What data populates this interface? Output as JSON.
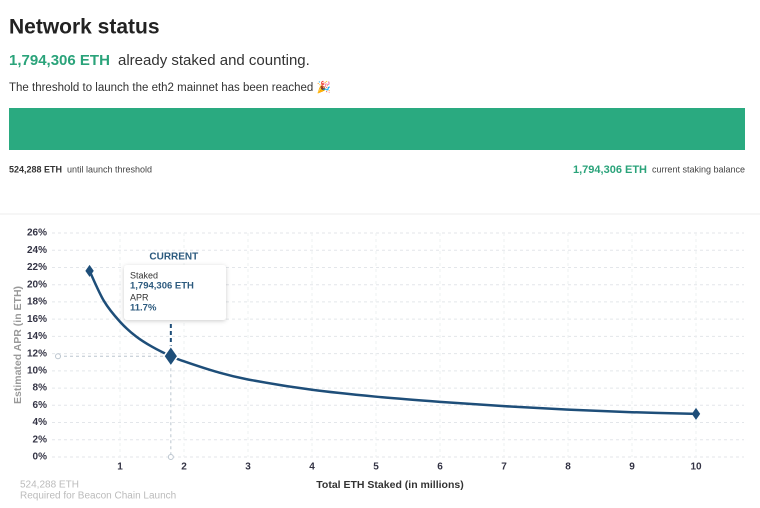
{
  "header": {
    "title": "Network status",
    "staked_amount": "1,794,306 ETH",
    "staked_text": "already staked and counting.",
    "threshold_text": "The threshold to launch the eth2 mainnet has been reached 🎉",
    "threshold_amount": "524,288 ETH",
    "threshold_caption": "until launch threshold",
    "balance_amount": "1,794,306 ETH",
    "balance_caption": "current staking balance"
  },
  "chart_data": {
    "type": "line",
    "y_label": "Estimated APR (in ETH)",
    "x_label": "Total ETH Staked  (in millions)",
    "color": "#1e4e79",
    "grid": true,
    "xlim": [
      0,
      10.75
    ],
    "xticks": [
      1,
      2,
      3,
      4,
      5,
      6,
      7,
      8,
      9,
      10
    ],
    "ylim": [
      0,
      26
    ],
    "yticks": [
      {
        "value": 0,
        "label": "0%"
      },
      {
        "value": 2,
        "label": "2%"
      },
      {
        "value": 4,
        "label": "4%"
      },
      {
        "value": 6,
        "label": "6%"
      },
      {
        "value": 8,
        "label": "8%"
      },
      {
        "value": 10,
        "label": "10%"
      },
      {
        "value": 12,
        "label": "12%"
      },
      {
        "value": 14,
        "label": "14%"
      },
      {
        "value": 16,
        "label": "16%"
      },
      {
        "value": 18,
        "label": "18%"
      },
      {
        "value": 20,
        "label": "20%"
      },
      {
        "value": 22,
        "label": "22%"
      },
      {
        "value": 24,
        "label": "24%"
      },
      {
        "value": 26,
        "label": "26%"
      }
    ],
    "x": [
      0.524288,
      0.75,
      1,
      1.25,
      1.5,
      1.794306,
      2,
      2.5,
      3,
      4,
      5,
      6,
      7,
      8,
      9,
      10
    ],
    "values": [
      21.6,
      18.1,
      15.7,
      14.0,
      12.8,
      11.7,
      11.1,
      9.9,
      9.0,
      7.8,
      7.0,
      6.4,
      5.9,
      5.5,
      5.2,
      5.0
    ],
    "current": {
      "label": "CURRENT",
      "x": 1.794306,
      "value": 11.7,
      "staked_label": "Staked",
      "staked": "1,794,306 ETH",
      "apr_label": "APR",
      "apr": "11.7%"
    },
    "footnote": {
      "amount": "524,288 ETH",
      "caption": "Required for Beacon Chain Launch"
    }
  }
}
